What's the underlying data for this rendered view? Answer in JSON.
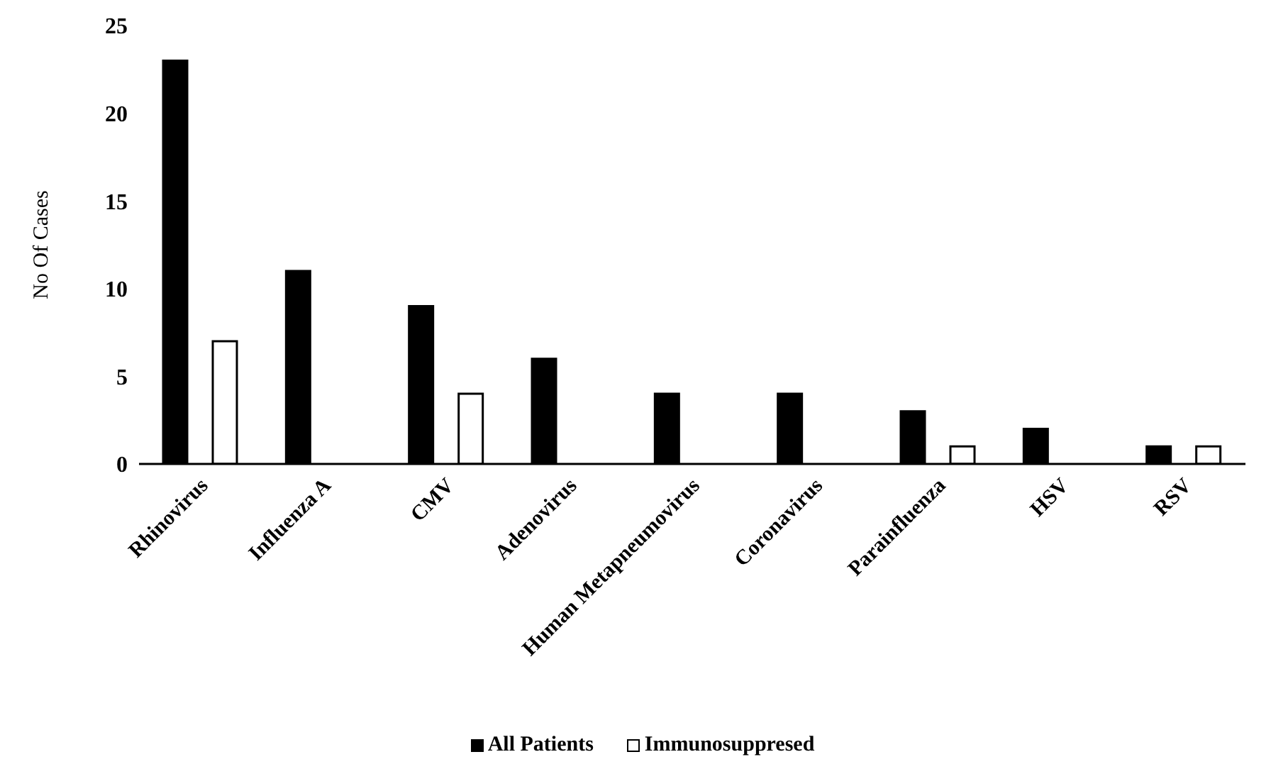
{
  "chart_data": {
    "type": "bar",
    "ylabel": "No Of Cases",
    "categories": [
      "Rhinovirus",
      "Influenza A",
      "CMV",
      "Adenovirus",
      "Human Metapneumovirus",
      "Coronavirus",
      "Parainfluenza",
      "HSV",
      "RSV"
    ],
    "series": [
      {
        "name": "All Patients",
        "color": "#000000",
        "values": [
          23,
          11,
          9,
          6,
          4,
          4,
          3,
          2,
          1
        ]
      },
      {
        "name": "Immunosuppresed",
        "color": "#ffffff",
        "values": [
          7,
          null,
          4,
          null,
          null,
          null,
          1,
          null,
          1
        ]
      }
    ],
    "ylim": [
      0,
      25
    ],
    "yticks": [
      0,
      5,
      10,
      15,
      20,
      25
    ],
    "grid": false,
    "legend": "bottom"
  }
}
